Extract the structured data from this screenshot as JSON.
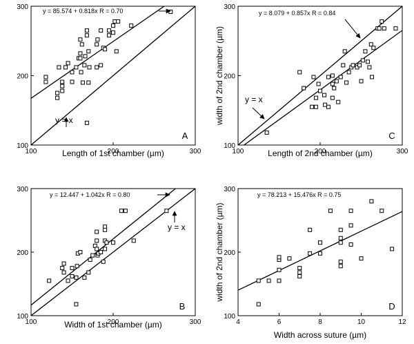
{
  "chart_data": [
    {
      "type": "scatter",
      "panel": "A",
      "xlabel": "Length of 1st chamber (µm)",
      "ylabel": "",
      "xlim": [
        100,
        300
      ],
      "ylim": [
        100,
        300
      ],
      "xticks": [
        "100",
        "200",
        "300"
      ],
      "yticks": [
        "100",
        "200",
        "300"
      ],
      "equation": "y = 85.574 + 0.818x   R = 0.70",
      "reference_label": "y = x",
      "lines": [
        {
          "kind": "regression",
          "intercept": 85.574,
          "slope": 0.818
        },
        {
          "kind": "identity",
          "intercept": 0,
          "slope": 1
        }
      ],
      "points": [
        [
          118,
          198
        ],
        [
          118,
          191
        ],
        [
          132,
          175
        ],
        [
          132,
          168
        ],
        [
          134,
          212
        ],
        [
          138,
          191
        ],
        [
          138,
          185
        ],
        [
          138,
          178
        ],
        [
          142,
          212
        ],
        [
          145,
          218
        ],
        [
          150,
          191
        ],
        [
          150,
          205
        ],
        [
          155,
          212
        ],
        [
          158,
          225
        ],
        [
          160,
          225
        ],
        [
          160,
          232
        ],
        [
          160,
          252
        ],
        [
          161,
          205
        ],
        [
          162,
          245
        ],
        [
          163,
          190
        ],
        [
          165,
          215
        ],
        [
          166,
          228
        ],
        [
          168,
          265
        ],
        [
          168,
          258
        ],
        [
          168,
          132
        ],
        [
          170,
          235
        ],
        [
          170,
          190
        ],
        [
          171,
          212
        ],
        [
          180,
          245
        ],
        [
          180,
          212
        ],
        [
          181,
          252
        ],
        [
          185,
          265
        ],
        [
          185,
          215
        ],
        [
          188,
          240
        ],
        [
          190,
          238
        ],
        [
          195,
          265
        ],
        [
          195,
          258
        ],
        [
          200,
          272
        ],
        [
          200,
          262
        ],
        [
          202,
          278
        ],
        [
          204,
          235
        ],
        [
          206,
          278
        ],
        [
          222,
          272
        ],
        [
          270,
          292
        ]
      ]
    },
    {
      "type": "scatter",
      "panel": "C",
      "xlabel": "Length of 2nd chamber (µm)",
      "ylabel": "width of 2nd chamber (µm)",
      "xlim": [
        100,
        300
      ],
      "ylim": [
        100,
        300
      ],
      "xticks": [
        "100",
        "200",
        "300"
      ],
      "yticks": [
        "100",
        "200",
        "300"
      ],
      "equation": "y = 8.079 + 0.857x   R = 0.84",
      "reference_label": "y = x",
      "lines": [
        {
          "kind": "regression",
          "intercept": 8.079,
          "slope": 0.857
        },
        {
          "kind": "identity",
          "intercept": 0,
          "slope": 1
        }
      ],
      "points": [
        [
          135,
          118
        ],
        [
          175,
          205
        ],
        [
          180,
          182
        ],
        [
          190,
          155
        ],
        [
          192,
          198
        ],
        [
          195,
          168
        ],
        [
          195,
          155
        ],
        [
          198,
          188
        ],
        [
          200,
          178
        ],
        [
          205,
          172
        ],
        [
          206,
          158
        ],
        [
          210,
          198
        ],
        [
          210,
          155
        ],
        [
          215,
          200
        ],
        [
          215,
          188
        ],
        [
          215,
          168
        ],
        [
          217,
          182
        ],
        [
          220,
          192
        ],
        [
          222,
          162
        ],
        [
          225,
          198
        ],
        [
          228,
          215
        ],
        [
          230,
          235
        ],
        [
          232,
          190
        ],
        [
          235,
          205
        ],
        [
          238,
          212
        ],
        [
          240,
          215
        ],
        [
          245,
          212
        ],
        [
          248,
          215
        ],
        [
          250,
          192
        ],
        [
          252,
          222
        ],
        [
          255,
          235
        ],
        [
          258,
          220
        ],
        [
          260,
          212
        ],
        [
          262,
          245
        ],
        [
          263,
          198
        ],
        [
          265,
          240
        ],
        [
          270,
          268
        ],
        [
          272,
          268
        ],
        [
          275,
          278
        ],
        [
          278,
          268
        ],
        [
          292,
          268
        ]
      ]
    },
    {
      "type": "scatter",
      "panel": "B",
      "xlabel": "Width of 1st chamber (µm)",
      "ylabel": "",
      "xlim": [
        100,
        300
      ],
      "ylim": [
        100,
        300
      ],
      "xticks": [
        "100",
        "200",
        "300"
      ],
      "yticks": [
        "100",
        "200",
        "300"
      ],
      "equation": "y = 12.447 + 1.042x   R = 0.80",
      "reference_label": "y = x",
      "lines": [
        {
          "kind": "regression",
          "intercept": 12.447,
          "slope": 1.042
        },
        {
          "kind": "identity",
          "intercept": 0,
          "slope": 1
        }
      ],
      "points": [
        [
          122,
          155
        ],
        [
          138,
          175
        ],
        [
          140,
          182
        ],
        [
          140,
          168
        ],
        [
          145,
          155
        ],
        [
          150,
          162
        ],
        [
          150,
          175
        ],
        [
          155,
          118
        ],
        [
          155,
          160
        ],
        [
          156,
          178
        ],
        [
          157,
          198
        ],
        [
          160,
          200
        ],
        [
          165,
          160
        ],
        [
          170,
          168
        ],
        [
          172,
          188
        ],
        [
          175,
          195
        ],
        [
          178,
          210
        ],
        [
          180,
          205
        ],
        [
          180,
          218
        ],
        [
          180,
          232
        ],
        [
          181,
          195
        ],
        [
          182,
          198
        ],
        [
          185,
          200
        ],
        [
          188,
          185
        ],
        [
          190,
          240
        ],
        [
          190,
          235
        ],
        [
          190,
          218
        ],
        [
          190,
          205
        ],
        [
          192,
          215
        ],
        [
          200,
          215
        ],
        [
          210,
          265
        ],
        [
          215,
          265
        ],
        [
          225,
          218
        ],
        [
          265,
          265
        ]
      ]
    },
    {
      "type": "scatter",
      "panel": "D",
      "xlabel": "Width across suture (µm)",
      "ylabel": "width of 2nd chamber (µm)",
      "xlim": [
        4,
        12
      ],
      "ylim": [
        100,
        300
      ],
      "xticks": [
        "4",
        "6",
        "8",
        "10",
        "12"
      ],
      "yticks": [
        "100",
        "200",
        "300"
      ],
      "equation": "y = 78.213 + 15.476x   R = 0.75",
      "reference_label": "",
      "lines": [
        {
          "kind": "regression",
          "intercept": 78.213,
          "slope": 15.476
        }
      ],
      "points": [
        [
          5,
          118
        ],
        [
          5,
          155
        ],
        [
          5.5,
          155
        ],
        [
          6,
          155
        ],
        [
          6,
          172
        ],
        [
          6,
          188
        ],
        [
          6,
          192
        ],
        [
          6.5,
          190
        ],
        [
          7,
          162
        ],
        [
          7,
          168
        ],
        [
          7,
          175
        ],
        [
          7.5,
          198
        ],
        [
          7.5,
          235
        ],
        [
          8,
          198
        ],
        [
          8,
          215
        ],
        [
          8.5,
          265
        ],
        [
          9,
          178
        ],
        [
          9,
          185
        ],
        [
          9,
          215
        ],
        [
          9,
          222
        ],
        [
          9,
          235
        ],
        [
          9.5,
          212
        ],
        [
          9.5,
          242
        ],
        [
          9.5,
          265
        ],
        [
          10,
          190
        ],
        [
          10.5,
          280
        ],
        [
          11,
          265
        ],
        [
          11.5,
          205
        ]
      ]
    }
  ]
}
